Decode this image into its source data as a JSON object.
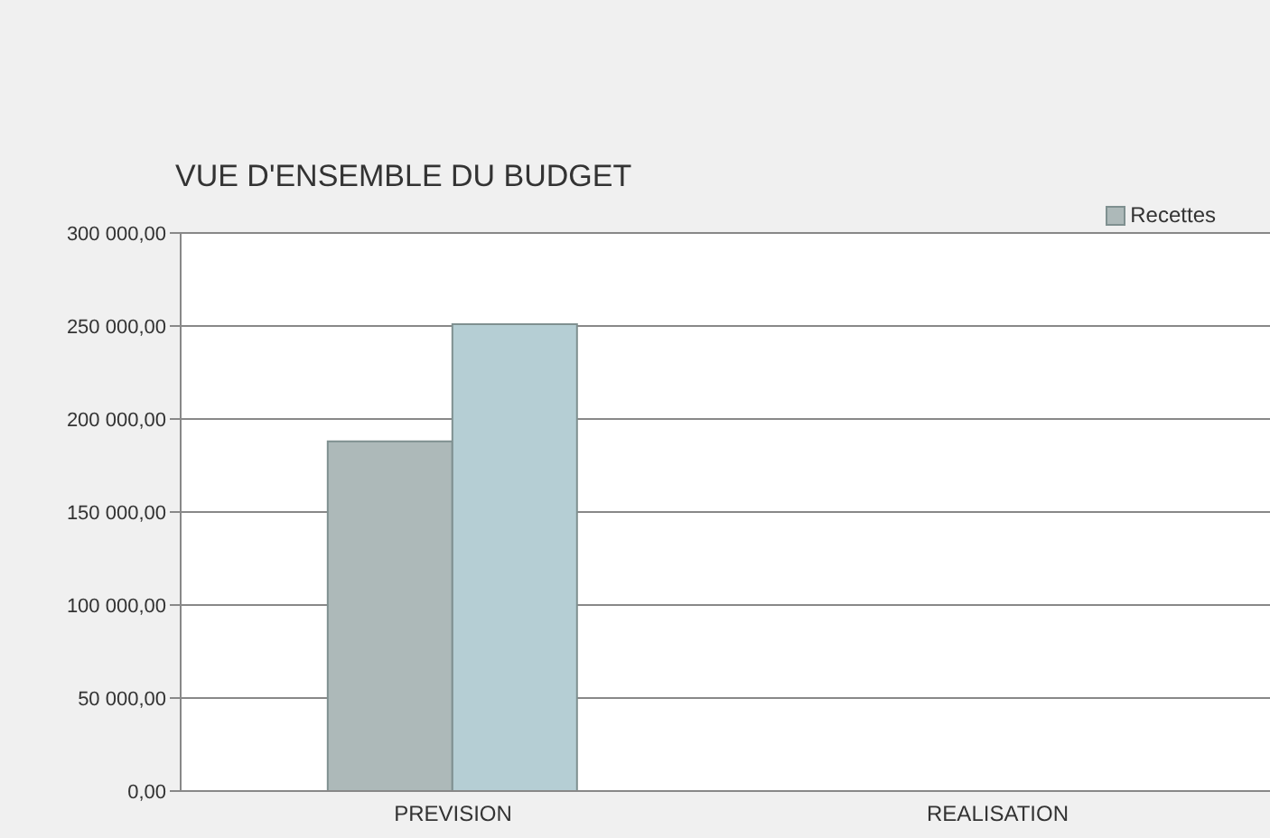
{
  "chart_data": {
    "type": "bar",
    "title": "VUE D'ENSEMBLE DU BUDGET",
    "categories": [
      "PREVISION",
      "REALISATION"
    ],
    "series": [
      {
        "name": "Recettes",
        "color": "#adb9b9",
        "values": [
          188000,
          null
        ]
      },
      {
        "color": "#b5ced4",
        "values": [
          251000,
          null
        ]
      }
    ],
    "ylim": [
      0,
      300000
    ],
    "yticks": [
      {
        "value": 0,
        "label": "0,00"
      },
      {
        "value": 50000,
        "label": "50 000,00"
      },
      {
        "value": 100000,
        "label": "100 000,00"
      },
      {
        "value": 150000,
        "label": "150 000,00"
      },
      {
        "value": 200000,
        "label": "200 000,00"
      },
      {
        "value": 250000,
        "label": "250 000,00"
      },
      {
        "value": 300000,
        "label": "300 000,00"
      }
    ],
    "grid": "y",
    "legend": "top right"
  }
}
